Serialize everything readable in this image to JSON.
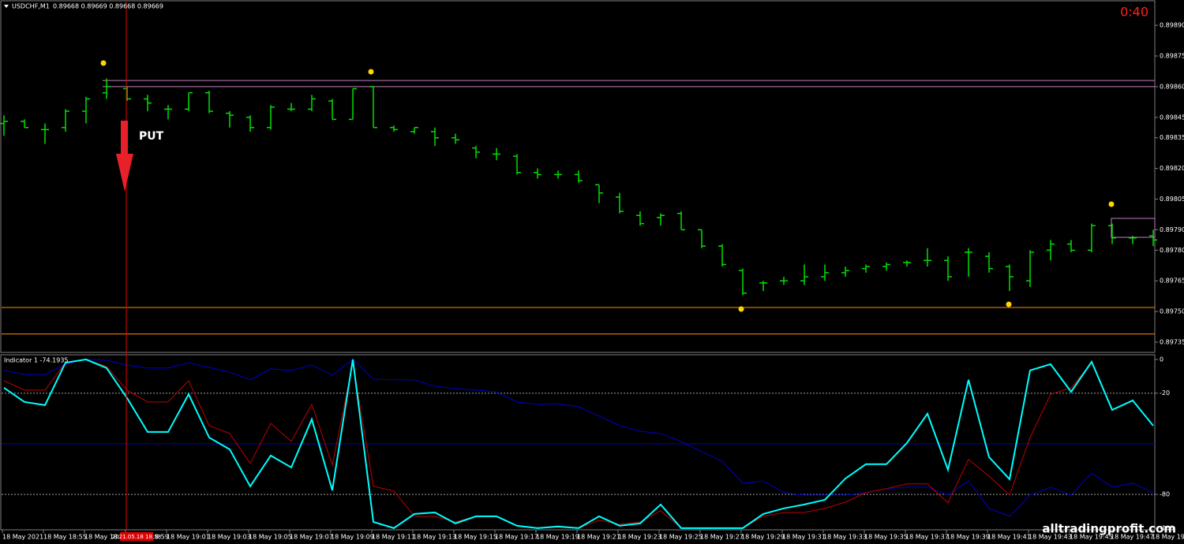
{
  "chart_data": [
    {
      "type": "ohlc",
      "title": "USDCHF,M1",
      "quote": "0.89668 0.89669 0.89668 0.89669",
      "timer": "0:40",
      "signal": "PUT",
      "crosshair_time": "2021.05.18 18:58",
      "watermark": "alltradingprofit.com",
      "color": "#00e000",
      "categories": [
        "18 May 2021",
        null,
        "18 May 18:55",
        null,
        "18 May 18:57",
        null,
        "18 May 18:59",
        null,
        "18 May 19:01",
        null,
        "18 May 19:03",
        null,
        "18 May 19:05",
        null,
        "18 May 19:07",
        null,
        "18 May 19:09",
        null,
        "18 May 19:11",
        null,
        "18 May 19:13",
        null,
        "18 May 19:15",
        null,
        "18 May 19:17",
        null,
        "18 May 19:19",
        null,
        "18 May 19:21",
        null,
        "18 May 19:23",
        null,
        "18 May 19:25",
        null,
        "18 May 19:27",
        null,
        "18 May 19:29",
        null,
        "18 May 19:31",
        null,
        "18 May 19:33",
        null,
        "18 May 19:35",
        null,
        "18 May 19:37",
        null,
        "18 May 19:39",
        null,
        "18 May 19:41",
        null,
        "18 May 19:43",
        null,
        "18 May 19:45",
        null,
        "18 May 19:47",
        null,
        "18 May 19:49"
      ],
      "open": [
        0.89842,
        0.89843,
        0.89839,
        0.8984,
        0.89848,
        0.89857,
        0.89859,
        0.89854,
        0.89849,
        0.89849,
        0.89857,
        0.89847,
        0.89845,
        0.8984,
        0.89849,
        0.89849,
        0.89853,
        0.89844,
        0.8986,
        0.8984,
        0.89838,
        0.89838,
        0.89835,
        0.8983,
        0.89827,
        0.89826,
        0.89818,
        0.89817,
        0.89817,
        0.89812,
        0.89806,
        0.89797,
        0.89796,
        0.89798,
        0.8979,
        0.89782,
        0.8977,
        0.89764,
        0.89765,
        0.89765,
        0.89767,
        0.89769,
        0.89771,
        0.89772,
        0.89774,
        0.89775,
        0.89775,
        0.89779,
        0.89777,
        0.89772,
        0.89765,
        0.8978,
        0.89783,
        0.8978,
        0.89792,
        0.89786,
        0.89787
      ],
      "high": [
        0.89846,
        0.89844,
        0.89842,
        0.89849,
        0.89855,
        0.89864,
        0.8986,
        0.89856,
        0.89851,
        0.89857,
        0.89858,
        0.89848,
        0.89846,
        0.89851,
        0.89852,
        0.89856,
        0.89854,
        0.89859,
        0.8986,
        0.89841,
        0.8984,
        0.8984,
        0.89837,
        0.89831,
        0.8983,
        0.89827,
        0.8982,
        0.89819,
        0.89819,
        0.89812,
        0.89808,
        0.89799,
        0.89798,
        0.89799,
        0.8979,
        0.89783,
        0.89771,
        0.89765,
        0.89767,
        0.89773,
        0.89773,
        0.89772,
        0.89773,
        0.89774,
        0.89775,
        0.89781,
        0.89777,
        0.89781,
        0.89779,
        0.89773,
        0.8978,
        0.89785,
        0.89785,
        0.89793,
        0.89793,
        0.89787,
        0.8979
      ],
      "low": [
        0.89836,
        0.8984,
        0.89832,
        0.89838,
        0.89842,
        0.89854,
        0.89853,
        0.89848,
        0.89844,
        0.89848,
        0.89847,
        0.8984,
        0.89838,
        0.89839,
        0.89848,
        0.89848,
        0.89844,
        0.89844,
        0.8984,
        0.89838,
        0.89837,
        0.89831,
        0.89832,
        0.89825,
        0.89824,
        0.89817,
        0.89815,
        0.89815,
        0.89813,
        0.89803,
        0.89798,
        0.89792,
        0.89792,
        0.8979,
        0.89781,
        0.89772,
        0.89758,
        0.8976,
        0.89763,
        0.89763,
        0.89765,
        0.89767,
        0.89769,
        0.8977,
        0.89772,
        0.89772,
        0.89765,
        0.89767,
        0.89769,
        0.8976,
        0.89762,
        0.89775,
        0.89779,
        0.89779,
        0.89783,
        0.89783,
        0.89782
      ],
      "close": [
        0.89843,
        0.8984,
        0.89839,
        0.89848,
        0.89854,
        0.8986,
        0.89854,
        0.89852,
        0.89849,
        0.89857,
        0.89848,
        0.89846,
        0.8984,
        0.8985,
        0.89849,
        0.89854,
        0.89844,
        0.89859,
        0.8984,
        0.89839,
        0.8984,
        0.89835,
        0.89834,
        0.89828,
        0.89827,
        0.89818,
        0.89817,
        0.89817,
        0.89814,
        0.89808,
        0.89799,
        0.89793,
        0.89797,
        0.8979,
        0.89782,
        0.89773,
        0.89759,
        0.89764,
        0.89765,
        0.89767,
        0.89769,
        0.8977,
        0.89772,
        0.89773,
        0.89774,
        0.89775,
        0.89767,
        0.89779,
        0.89771,
        0.89767,
        0.89779,
        0.89783,
        0.8978,
        0.89792,
        0.89786,
        0.89786,
        0.89785
      ],
      "ylim": [
        0.8973,
        0.89902
      ],
      "yticks": [
        {
          "value": 0.8989,
          "label": "0.89890"
        },
        0.89875,
        {
          "value": 0.8986,
          "label": "0.89860"
        },
        0.89845,
        0.89835,
        {
          "value": 0.8982,
          "label": "0.89820"
        },
        0.89805,
        {
          "value": 0.8979,
          "label": "0.89790"
        },
        {
          "value": 0.8978,
          "label": "0.89780"
        },
        0.89765,
        {
          "value": 0.8975,
          "label": "0.89750"
        },
        0.89735
      ],
      "levels": [
        {
          "value": 0.89863,
          "color": "#c080c0"
        },
        {
          "value": 0.8986,
          "color": "#c080c0"
        },
        {
          "value": 0.89752,
          "color": "#ff8c00"
        },
        {
          "value": 0.89739,
          "color": "#ff8c00"
        }
      ]
    },
    {
      "type": "line",
      "title": "Indicator 1 -74.1935",
      "series": [
        {
          "color": "#0000cd",
          "values": [
            -6.5,
            -8.9,
            -8.9,
            -2.8,
            0,
            -0.5,
            -3.3,
            -5.1,
            -5.1,
            -1.9,
            -4.7,
            -7.5,
            -12.1,
            -5.6,
            -6.5,
            -3.3,
            -9.3,
            0,
            -11.7,
            -12.1,
            -12.1,
            -15.9,
            -17.3,
            -18.2,
            -19.2,
            -25.2,
            -26.6,
            -26.2,
            -28,
            -33.6,
            -39.3,
            -42.5,
            -43.9,
            -48.6,
            -54.7,
            -60.3,
            -73.4,
            -72,
            -79,
            -80.4,
            -80.4,
            -80.4,
            -79,
            -76.6,
            -75.7,
            -75.7,
            -80.4,
            -72,
            -88.3,
            -93,
            -80.4,
            -75.7,
            -80.4,
            -67.3,
            -75.7,
            -73.4,
            -79
          ]
        },
        {
          "color": "#c00000",
          "values": [
            -12.6,
            -18.2,
            -18.2,
            -1.9,
            0,
            -4.2,
            -18.2,
            -25.2,
            -25.2,
            -12.6,
            -39.3,
            -43.9,
            -61.7,
            -37.9,
            -48.6,
            -26.6,
            -62.6,
            -1.9,
            -75.2,
            -78,
            -93,
            -93,
            -96.3,
            -93,
            -93,
            -98.6,
            -100,
            -98.6,
            -100,
            -95.3,
            -97.7,
            -96.3,
            -89.7,
            -100,
            -100,
            -100,
            -100,
            -93,
            -90.7,
            -90.7,
            -88.3,
            -84.6,
            -79,
            -76.6,
            -73.8,
            -73.8,
            -85,
            -59.3,
            -69.2,
            -80.4,
            -46.3,
            -20.6,
            -16.8,
            -1.9,
            -29.9,
            -24.3,
            -39.3
          ]
        },
        {
          "color": "#00ffff",
          "values": [
            -16.8,
            -25.2,
            -27.1,
            -1.9,
            0,
            -5.1,
            -22.9,
            -43,
            -43,
            -20.6,
            -46.3,
            -53.3,
            -75.2,
            -57,
            -64,
            -35.5,
            -77.6,
            0,
            -96.3,
            -100,
            -91.6,
            -90.7,
            -97.2,
            -93,
            -93,
            -98.6,
            -100,
            -99.1,
            -100,
            -93,
            -98.6,
            -97.2,
            -86,
            -100,
            -100,
            -100,
            -100,
            -91.6,
            -88.3,
            -86,
            -83.2,
            -70.6,
            -62.1,
            -62.1,
            -49.5,
            -32.2,
            -65.4,
            -12.1,
            -57.9,
            -71,
            -6.5,
            -2.8,
            -19.2,
            -1.4,
            -29.9,
            -24.3,
            -39.3
          ]
        }
      ],
      "ylim": [
        -101,
        2.3
      ],
      "yticks": [
        0,
        -20,
        -80,
        -100
      ],
      "grid_levels": [
        -20,
        -80
      ],
      "level": {
        "value": -50,
        "color": "#0000cd"
      }
    }
  ]
}
